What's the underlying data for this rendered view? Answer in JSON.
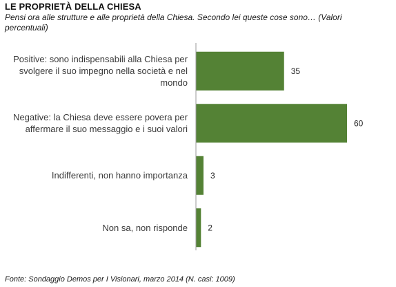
{
  "header": {
    "title": "LE PROPRIETÀ DELLA CHIESA",
    "subtitle": "Pensi ora alle strutture e alle proprietà della Chiesa. Secondo lei queste cose sono…  (Valori percentuali)"
  },
  "footer": {
    "source": "Fonte: Sondaggio Demos per I Visionari, marzo 2014 (N. casi: 1009)"
  },
  "colors": {
    "bar": "#548235",
    "axis": "#9a9a9a",
    "label": "#3a3a3a"
  },
  "chart_data": {
    "type": "bar",
    "orientation": "horizontal",
    "categories": [
      "Positive: sono indispensabili alla Chiesa per svolgere il suo impegno nella società e nel mondo",
      "Negative: la Chiesa deve essere povera per affermare il suo messaggio e i suoi valori",
      "Indifferenti, non hanno importanza",
      "Non sa, non risponde"
    ],
    "values": [
      35,
      60,
      3,
      2
    ],
    "data_labels": [
      "35",
      "60",
      "3",
      "2"
    ],
    "xlim": [
      0,
      60
    ],
    "grid": false,
    "legend": "none"
  }
}
